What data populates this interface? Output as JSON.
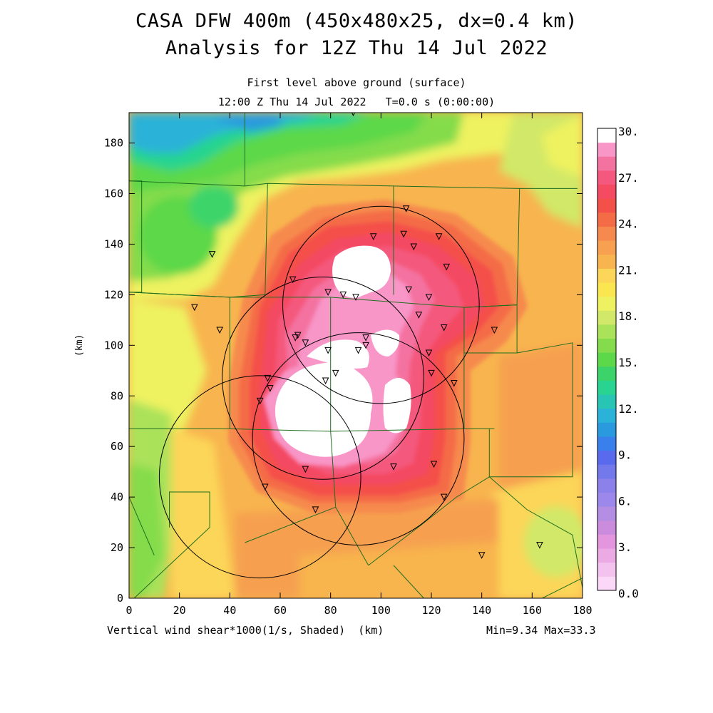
{
  "title": {
    "line1": "CASA DFW 400m (450x480x25, dx=0.4 km)",
    "line2": "Analysis for 12Z Thu 14 Jul 2022"
  },
  "subtitle": {
    "level": "First level above ground (surface)",
    "time": "12:00 Z Thu 14 Jul 2022   T=0.0 s (0:00:00)"
  },
  "footer": {
    "field": "Vertical wind shear*1000(1/s, Shaded)  (km)",
    "minmax": "Min=9.34 Max=33.3"
  },
  "axes": {
    "y_unit": "(km)",
    "x_range": [
      0,
      180
    ],
    "y_range": [
      0,
      192
    ],
    "x_ticks": [
      "0",
      "20",
      "40",
      "60",
      "80",
      "100",
      "120",
      "140",
      "160",
      "180"
    ],
    "y_ticks": [
      "0",
      "20",
      "40",
      "60",
      "80",
      "100",
      "120",
      "140",
      "160",
      "180"
    ]
  },
  "colorbar": {
    "labels": [
      "30.",
      "27.",
      "24.",
      "21.",
      "18.",
      "15.",
      "12.",
      "9.",
      "6.",
      "3.",
      "0.0"
    ],
    "colors_low_to_high": [
      "#fbd8f8",
      "#f4c2ee",
      "#ecaae4",
      "#e396de",
      "#cc8cde",
      "#b48ee2",
      "#9b88ea",
      "#8c80ea",
      "#7378ea",
      "#5a6aec",
      "#3a80ec",
      "#2a9ade",
      "#2ab2d8",
      "#28c4b4",
      "#28d490",
      "#3cd46a",
      "#5cd84a",
      "#84dc4c",
      "#aae25a",
      "#d2e868",
      "#eef260",
      "#fae650",
      "#fcd658",
      "#f8b44e",
      "#f6a050",
      "#f68a4e",
      "#f46c46",
      "#f4504a",
      "#f44a62",
      "#f4587c",
      "#f472a0",
      "#f896c8",
      "#ffffff"
    ]
  },
  "chart_data": {
    "type": "heatmap",
    "field": "Vertical wind shear*1000(1/s, Shaded)",
    "value_range": [
      9.34,
      33.3
    ],
    "contour_interval": 1.5,
    "radar_rings_km": [
      {
        "x": 100,
        "y": 116,
        "r": 39
      },
      {
        "x": 77,
        "y": 87,
        "r": 40
      },
      {
        "x": 91,
        "y": 63,
        "r": 42
      },
      {
        "x": 52,
        "y": 48,
        "r": 40
      }
    ],
    "stations_km": [
      [
        89,
        192
      ],
      [
        110,
        154
      ],
      [
        97,
        143
      ],
      [
        109,
        144
      ],
      [
        123,
        143
      ],
      [
        113,
        139
      ],
      [
        126,
        131
      ],
      [
        33,
        136
      ],
      [
        65,
        126
      ],
      [
        111,
        122
      ],
      [
        79,
        121
      ],
      [
        85,
        120
      ],
      [
        90,
        119
      ],
      [
        119,
        119
      ],
      [
        26,
        115
      ],
      [
        115,
        112
      ],
      [
        125,
        107
      ],
      [
        145,
        106
      ],
      [
        36,
        106
      ],
      [
        67,
        104
      ],
      [
        94,
        103
      ],
      [
        66,
        103
      ],
      [
        70,
        101
      ],
      [
        94,
        100
      ],
      [
        79,
        98
      ],
      [
        91,
        98
      ],
      [
        119,
        97
      ],
      [
        120,
        89
      ],
      [
        82,
        89
      ],
      [
        55,
        87
      ],
      [
        78,
        86
      ],
      [
        129,
        85
      ],
      [
        56,
        83
      ],
      [
        52,
        78
      ],
      [
        70,
        51
      ],
      [
        105,
        52
      ],
      [
        121,
        53
      ],
      [
        54,
        44
      ],
      [
        125,
        40
      ],
      [
        74,
        35
      ],
      [
        140,
        17
      ],
      [
        163,
        21
      ]
    ],
    "field_boundaries_km": [
      [
        [
          0,
          165
        ],
        [
          5,
          165
        ],
        [
          5,
          121
        ],
        [
          0,
          121
        ]
      ],
      [
        [
          46,
          193
        ],
        [
          46,
          163
        ]
      ],
      [
        [
          0,
          165
        ],
        [
          46,
          163
        ],
        [
          55,
          164
        ],
        [
          105,
          163
        ],
        [
          155,
          162
        ],
        [
          163,
          162
        ],
        [
          178,
          162
        ]
      ],
      [
        [
          55,
          164
        ],
        [
          54,
          120
        ],
        [
          40,
          119
        ],
        [
          0,
          121
        ]
      ],
      [
        [
          105,
          163
        ],
        [
          105,
          120
        ]
      ],
      [
        [
          155,
          162
        ],
        [
          154,
          116
        ],
        [
          133,
          115
        ]
      ],
      [
        [
          0,
          121
        ],
        [
          40,
          119
        ],
        [
          80,
          119
        ],
        [
          133,
          115
        ],
        [
          154,
          116
        ]
      ],
      [
        [
          40,
          119
        ],
        [
          40,
          67
        ],
        [
          0,
          67
        ]
      ],
      [
        [
          80,
          119
        ],
        [
          80,
          66
        ]
      ],
      [
        [
          133,
          115
        ],
        [
          133,
          67
        ]
      ],
      [
        [
          40,
          67
        ],
        [
          80,
          66
        ],
        [
          133,
          67
        ],
        [
          145,
          67
        ]
      ],
      [
        [
          154,
          116
        ],
        [
          154,
          97
        ],
        [
          133,
          97
        ]
      ],
      [
        [
          154,
          97
        ],
        [
          176,
          101
        ],
        [
          176,
          48
        ],
        [
          143,
          48
        ],
        [
          143,
          67
        ]
      ],
      [
        [
          16,
          28
        ],
        [
          16,
          42
        ],
        [
          32,
          42
        ],
        [
          32,
          28
        ]
      ],
      [
        [
          32,
          28
        ],
        [
          2,
          0
        ]
      ],
      [
        [
          0,
          40
        ],
        [
          10,
          17
        ]
      ],
      [
        [
          80,
          66
        ],
        [
          82,
          36
        ],
        [
          46,
          22
        ]
      ],
      [
        [
          82,
          36
        ],
        [
          95,
          13
        ]
      ],
      [
        [
          95,
          13
        ],
        [
          116,
          29
        ],
        [
          130,
          40
        ],
        [
          143,
          48
        ]
      ],
      [
        [
          143,
          48
        ],
        [
          158,
          35
        ],
        [
          176,
          25
        ],
        [
          180,
          4
        ]
      ],
      [
        [
          105,
          13
        ],
        [
          117,
          0
        ]
      ],
      [
        [
          164,
          0
        ],
        [
          180,
          8
        ]
      ]
    ]
  }
}
